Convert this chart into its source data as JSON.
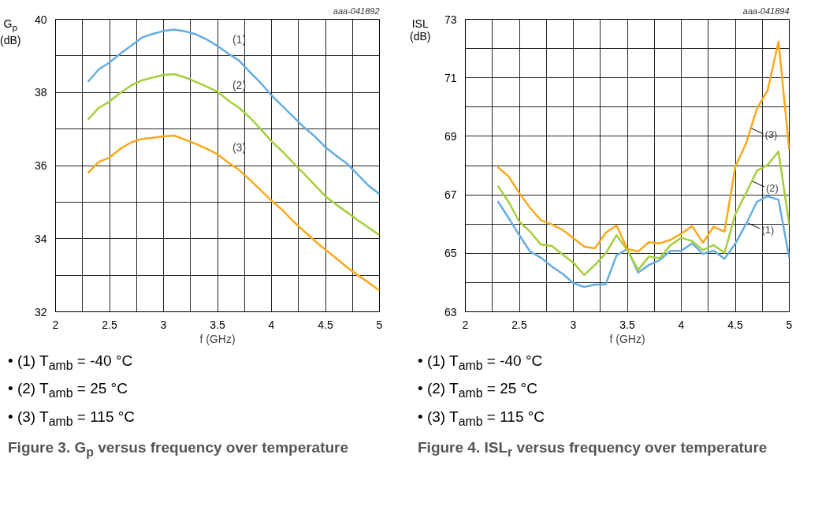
{
  "chart_data": [
    {
      "type": "line",
      "title": "Figure 3.  G$_{p}$ versus frequency over temperature",
      "xlabel": "f (GHz)",
      "ylabel": "G$_{p}$ (dB)",
      "x": [
        2.3,
        2.4,
        2.5,
        2.6,
        2.7,
        2.8,
        2.9,
        3.0,
        3.1,
        3.2,
        3.3,
        3.4,
        3.5,
        3.6,
        3.7,
        3.8,
        3.9,
        4.0,
        4.1,
        4.2,
        4.3,
        4.4,
        4.5,
        4.6,
        4.7,
        4.8,
        4.9,
        5.0
      ],
      "series": [
        {
          "color": "#64ade1",
          "values": [
            38.29,
            38.63,
            38.82,
            39.06,
            39.28,
            39.5,
            39.6,
            39.68,
            39.72,
            39.67,
            39.59,
            39.45,
            39.27,
            39.06,
            38.87,
            38.56,
            38.26,
            37.92,
            37.63,
            37.34,
            37.05,
            36.8,
            36.5,
            36.27,
            36.05,
            35.75,
            35.45,
            35.22
          ]
        },
        {
          "color": "#a5cf3b",
          "values": [
            37.26,
            37.58,
            37.75,
            37.99,
            38.19,
            38.33,
            38.41,
            38.48,
            38.5,
            38.41,
            38.29,
            38.16,
            38.02,
            37.78,
            37.58,
            37.31,
            37.0,
            36.66,
            36.39,
            36.08,
            35.78,
            35.47,
            35.16,
            34.93,
            34.72,
            34.5,
            34.3,
            34.1
          ]
        },
        {
          "color": "#f9a91b",
          "values": [
            35.8,
            36.1,
            36.22,
            36.46,
            36.63,
            36.73,
            36.76,
            36.8,
            36.82,
            36.71,
            36.59,
            36.46,
            36.31,
            36.08,
            35.88,
            35.61,
            35.33,
            35.04,
            34.79,
            34.48,
            34.21,
            33.94,
            33.7,
            33.46,
            33.22,
            33.0,
            32.8,
            32.58
          ]
        }
      ],
      "xlim": [
        2,
        5
      ],
      "ylim": [
        32,
        40
      ],
      "xticks": [
        2,
        {
          "value": 2.25,
          "label": null
        },
        2.5,
        {
          "value": 2.75,
          "label": null
        },
        3,
        {
          "value": 3.25,
          "label": null
        },
        3.5,
        {
          "value": 3.75,
          "label": null
        },
        4,
        {
          "value": 4.25,
          "label": null
        },
        4.5,
        {
          "value": 4.75,
          "label": null
        },
        5
      ],
      "yticks": [
        32,
        {
          "value": 33,
          "label": null
        },
        34,
        {
          "value": 35,
          "label": null
        },
        36,
        {
          "value": 37,
          "label": null
        },
        38,
        {
          "value": 39,
          "label": null
        },
        40
      ],
      "grid": true,
      "marker": "none",
      "line_style": "solid",
      "annotations": [
        "aaa-041892",
        {
          "text": "(1)",
          "x": 3.58,
          "y": 39.15
        },
        {
          "text": "(2)",
          "x": 3.58,
          "y": 37.9
        },
        {
          "text": "(3)",
          "x": 3.58,
          "y": 36.2
        },
        "• (1) T$_{amb}$ = -40 °C",
        "• (2) T$_{amb}$ = 25 °C",
        "• (3) T$_{amb}$ = 115 °C"
      ]
    },
    {
      "type": "line",
      "title": "Figure 4.  ISL$_{r}$ versus frequency over temperature",
      "xlabel": "f (GHz)",
      "ylabel": "ISL (dB)",
      "x": [
        2.3,
        2.4,
        2.5,
        2.6,
        2.7,
        2.8,
        2.9,
        3.0,
        3.1,
        3.2,
        3.3,
        3.4,
        3.5,
        3.6,
        3.7,
        3.8,
        3.9,
        4.0,
        4.1,
        4.2,
        4.3,
        4.4,
        4.5,
        4.6,
        4.7,
        4.8,
        4.9,
        5.0
      ],
      "series": [
        {
          "color": "#64ade1",
          "values": [
            66.78,
            66.21,
            65.62,
            65.06,
            64.85,
            64.55,
            64.3,
            63.98,
            63.85,
            63.93,
            63.94,
            64.93,
            65.15,
            64.34,
            64.6,
            64.77,
            65.08,
            65.09,
            65.34,
            64.98,
            65.09,
            64.81,
            65.33,
            66.0,
            66.76,
            66.95,
            66.83,
            64.85
          ]
        },
        {
          "color": "#a5cf3b",
          "values": [
            67.31,
            66.76,
            66.08,
            65.74,
            65.3,
            65.25,
            64.96,
            64.68,
            64.26,
            64.6,
            65.0,
            65.62,
            65.11,
            64.43,
            64.89,
            64.83,
            65.28,
            65.53,
            65.42,
            65.11,
            65.28,
            65.02,
            66.33,
            67.06,
            67.82,
            68.02,
            68.48,
            65.98
          ]
        },
        {
          "color": "#f9a91b",
          "values": [
            67.95,
            67.63,
            67.06,
            66.55,
            66.13,
            65.99,
            65.8,
            65.52,
            65.23,
            65.17,
            65.7,
            65.95,
            65.15,
            65.06,
            65.38,
            65.34,
            65.46,
            65.67,
            65.93,
            65.36,
            65.91,
            65.74,
            67.95,
            68.76,
            69.94,
            70.58,
            72.24,
            68.54
          ]
        }
      ],
      "xlim": [
        2,
        5
      ],
      "ylim": [
        63,
        73
      ],
      "xticks": [
        2,
        {
          "value": 2.25,
          "label": null
        },
        2.5,
        {
          "value": 2.75,
          "label": null
        },
        3,
        {
          "value": 3.25,
          "label": null
        },
        3.5,
        {
          "value": 3.75,
          "label": null
        },
        4,
        {
          "value": 4.25,
          "label": null
        },
        4.5,
        {
          "value": 4.75,
          "label": null
        },
        5
      ],
      "yticks": [
        63,
        {
          "value": 64,
          "label": null
        },
        65,
        {
          "value": 66,
          "label": null
        },
        67,
        {
          "value": 68,
          "label": null
        },
        69,
        {
          "value": 70,
          "label": null
        },
        71,
        {
          "value": 72,
          "label": null
        },
        73
      ],
      "grid": true,
      "marker": "none",
      "line_style": "solid",
      "annotations": [
        "aaa-041894",
        {
          "text": "(1)",
          "x": 4.62,
          "y": 66.03
        },
        {
          "text": "(2)",
          "x": 4.66,
          "y": 67.46
        },
        {
          "text": "(3)",
          "x": 4.65,
          "y": 69.27
        },
        "• (1) T$_{amb}$ = -40 °C",
        "• (2) T$_{amb}$ = 25 °C",
        "• (3) T$_{amb}$ = 115 °C"
      ]
    }
  ]
}
